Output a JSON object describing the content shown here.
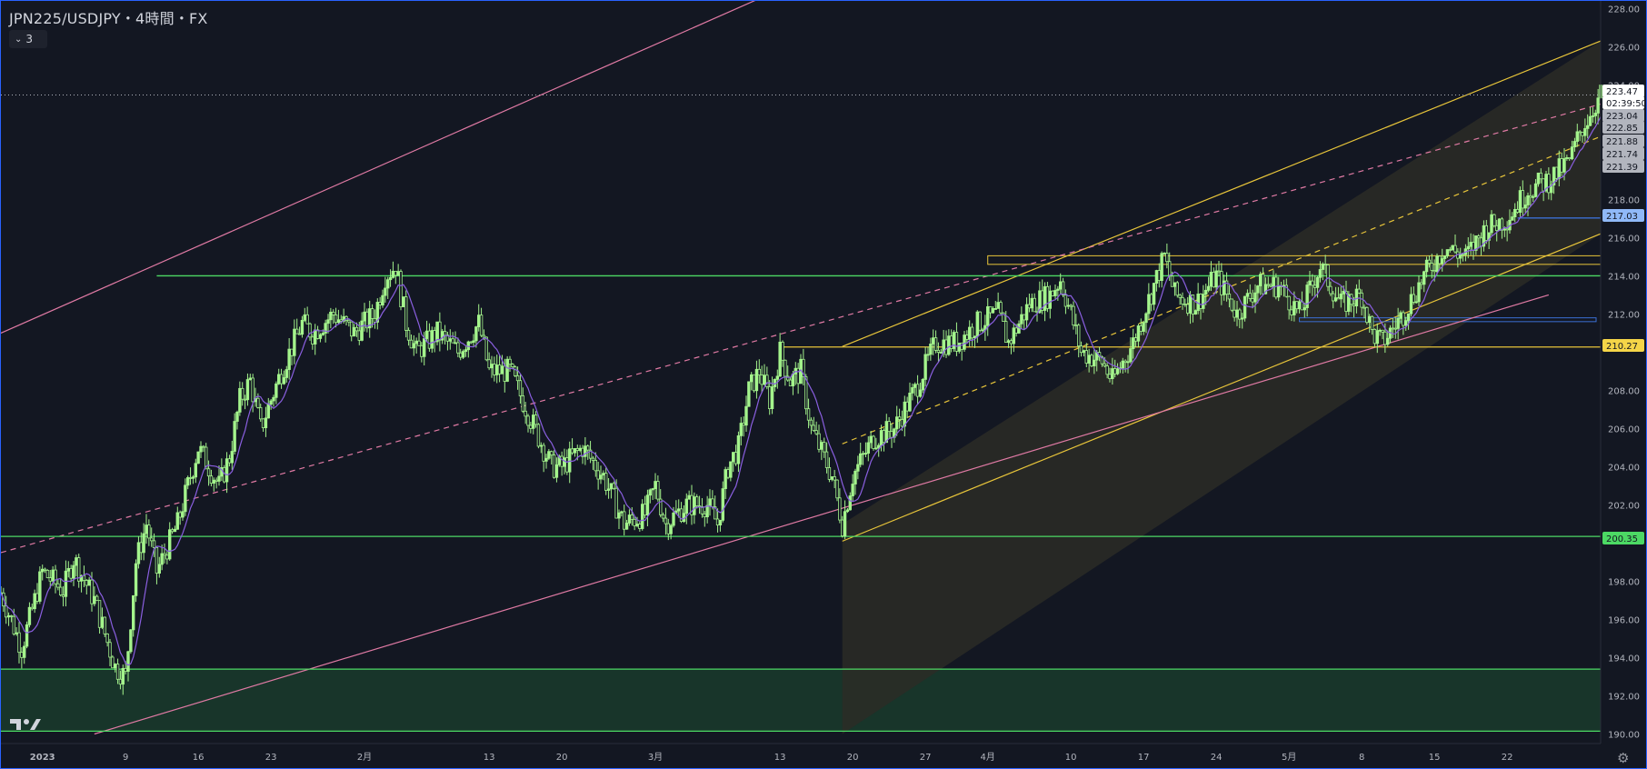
{
  "header": {
    "title": "JPN225/USDJPY・4時間・FX",
    "interval_button": "3"
  },
  "icons": {
    "logo": "tradingview-logo-icon",
    "chevron": "chevron-down-icon",
    "settings": "gear-icon"
  },
  "colors": {
    "background": "#131722",
    "candle": "#a4f48c",
    "moving_average": "#8a5fe0",
    "green_line": "#4cd964",
    "yellow_line": "#e8c53a",
    "pink_line": "#e07aa4",
    "blue_line": "#3b6fd4",
    "channel_fill": "#2b2b26",
    "zone_fill": "#18352a"
  },
  "chart_data": {
    "type": "candlestick",
    "title": "JPN225/USDJPY・4時間・FX",
    "ylim": [
      189.5,
      228.4
    ],
    "y_ticks": [
      190,
      192,
      194,
      196,
      198,
      200,
      202,
      204,
      206,
      208,
      210,
      212,
      214,
      216,
      218,
      220,
      222,
      224,
      226,
      228
    ],
    "y_tick_labels": [
      "190.00",
      "192.00",
      "194.00",
      "196.00",
      "198.00",
      "",
      "202.00",
      "204.00",
      "206.00",
      "208.00",
      "",
      "212.00",
      "214.00",
      "216.00",
      "218.00",
      "",
      "",
      "224.00",
      "226.00",
      "228.00"
    ],
    "x_ticks": [
      {
        "label": "2023",
        "day": 0,
        "bold": true
      },
      {
        "label": "9",
        "day": 8
      },
      {
        "label": "16",
        "day": 15
      },
      {
        "label": "23",
        "day": 22
      },
      {
        "label": "2月",
        "day": 31
      },
      {
        "label": "13",
        "day": 43
      },
      {
        "label": "20",
        "day": 50
      },
      {
        "label": "3月",
        "day": 59
      },
      {
        "label": "13",
        "day": 71
      },
      {
        "label": "20",
        "day": 78
      },
      {
        "label": "27",
        "day": 85
      },
      {
        "label": "4月",
        "day": 91
      },
      {
        "label": "10",
        "day": 99
      },
      {
        "label": "17",
        "day": 106
      },
      {
        "label": "24",
        "day": 113
      },
      {
        "label": "5月",
        "day": 120
      },
      {
        "label": "8",
        "day": 127
      },
      {
        "label": "15",
        "day": 134
      },
      {
        "label": "22",
        "day": 141
      }
    ],
    "x_range_days": [
      -4,
      150
    ],
    "price_path": [
      [
        -4,
        197.4
      ],
      [
        -2,
        194.5
      ],
      [
        0,
        198.5
      ],
      [
        2,
        197.5
      ],
      [
        3,
        199.2
      ],
      [
        5,
        197.0
      ],
      [
        7,
        193.5
      ],
      [
        8,
        193.0
      ],
      [
        9,
        199.0
      ],
      [
        10,
        201.0
      ],
      [
        11,
        198.5
      ],
      [
        13,
        201.0
      ],
      [
        15,
        205.0
      ],
      [
        17,
        203.0
      ],
      [
        18,
        204.5
      ],
      [
        19,
        207.5
      ],
      [
        20,
        208.5
      ],
      [
        21,
        206.0
      ],
      [
        23,
        209.0
      ],
      [
        25,
        211.5
      ],
      [
        26,
        211.0
      ],
      [
        28,
        212.0
      ],
      [
        30,
        211.0
      ],
      [
        32,
        212.0
      ],
      [
        33,
        214.0
      ],
      [
        34,
        214.5
      ],
      [
        35,
        211.5
      ],
      [
        36,
        210.0
      ],
      [
        38,
        211.0
      ],
      [
        40,
        210.0
      ],
      [
        42,
        211.5
      ],
      [
        43,
        209.0
      ],
      [
        45,
        209.0
      ],
      [
        47,
        206.5
      ],
      [
        49,
        204.0
      ],
      [
        50,
        204.0
      ],
      [
        52,
        205.0
      ],
      [
        54,
        203.5
      ],
      [
        56,
        201.0
      ],
      [
        58,
        201.5
      ],
      [
        59,
        203.0
      ],
      [
        60,
        201.0
      ],
      [
        62,
        202.0
      ],
      [
        64,
        202.0
      ],
      [
        65,
        201.0
      ],
      [
        66,
        204.0
      ],
      [
        67,
        205.0
      ],
      [
        68,
        208.0
      ],
      [
        69,
        209.0
      ],
      [
        70,
        207.5
      ],
      [
        71,
        210.0
      ],
      [
        72,
        208.5
      ],
      [
        73,
        209.0
      ],
      [
        74,
        206.0
      ],
      [
        76,
        203.5
      ],
      [
        77,
        201.0
      ],
      [
        78,
        203.5
      ],
      [
        80,
        205.5
      ],
      [
        82,
        206.0
      ],
      [
        84,
        208.0
      ],
      [
        86,
        210.5
      ],
      [
        88,
        210.5
      ],
      [
        90,
        211.5
      ],
      [
        92,
        212.0
      ],
      [
        93,
        210.5
      ],
      [
        95,
        212.5
      ],
      [
        97,
        213.0
      ],
      [
        98,
        213.8
      ],
      [
        99,
        212.0
      ],
      [
        100,
        210.0
      ],
      [
        102,
        209.5
      ],
      [
        103,
        208.5
      ],
      [
        105,
        210.5
      ],
      [
        107,
        213.5
      ],
      [
        108,
        215.0
      ],
      [
        109,
        213.0
      ],
      [
        111,
        212.5
      ],
      [
        113,
        214.0
      ],
      [
        115,
        212.0
      ],
      [
        117,
        213.5
      ],
      [
        119,
        213.5
      ],
      [
        121,
        212.0
      ],
      [
        123,
        214.5
      ],
      [
        125,
        212.5
      ],
      [
        127,
        213.0
      ],
      [
        128,
        211.0
      ],
      [
        129,
        210.5
      ],
      [
        131,
        212.0
      ],
      [
        133,
        214.0
      ],
      [
        135,
        215.5
      ],
      [
        137,
        215.0
      ],
      [
        139,
        216.5
      ],
      [
        141,
        217.0
      ],
      [
        143,
        218.5
      ],
      [
        145,
        219.0
      ],
      [
        147,
        220.0
      ],
      [
        148,
        221.5
      ],
      [
        149,
        222.5
      ],
      [
        150,
        223.5
      ]
    ],
    "horizontal_lines": [
      {
        "price": 214.0,
        "color": "green",
        "from_day": 11
      },
      {
        "price": 200.35,
        "color": "green"
      },
      {
        "price": 193.4,
        "color": "green"
      },
      {
        "price": 190.15,
        "color": "green"
      },
      {
        "price": 210.27,
        "color": "yellow",
        "from_day": 71
      },
      {
        "price": 217.03,
        "color": "blue",
        "from_day": 142
      }
    ],
    "channels": [
      {
        "color": "pink",
        "points": [
          [
            -4,
            211.0
          ],
          [
            71,
            229.0
          ]
        ]
      },
      {
        "color": "pink",
        "points": [
          [
            5,
            190.0
          ],
          [
            145,
            213.0
          ]
        ]
      },
      {
        "color": "pink",
        "dashed": true,
        "points": [
          [
            -4,
            199.5
          ],
          [
            150,
            223.0
          ]
        ]
      }
    ],
    "price_labels": [
      {
        "text": "223.47",
        "style": "last"
      },
      {
        "text": "02:39:50",
        "style": "timer"
      },
      {
        "text": "223.04",
        "style": "grey"
      },
      {
        "text": "222.85",
        "style": "grey"
      },
      {
        "text": "221.88",
        "style": "grey"
      },
      {
        "text": "221.74",
        "style": "grey"
      },
      {
        "text": "221.39",
        "style": "grey"
      },
      {
        "text": "217.03",
        "style": "blue"
      },
      {
        "text": "210.27",
        "style": "yellow"
      },
      {
        "text": "200.35",
        "style": "green"
      }
    ]
  }
}
